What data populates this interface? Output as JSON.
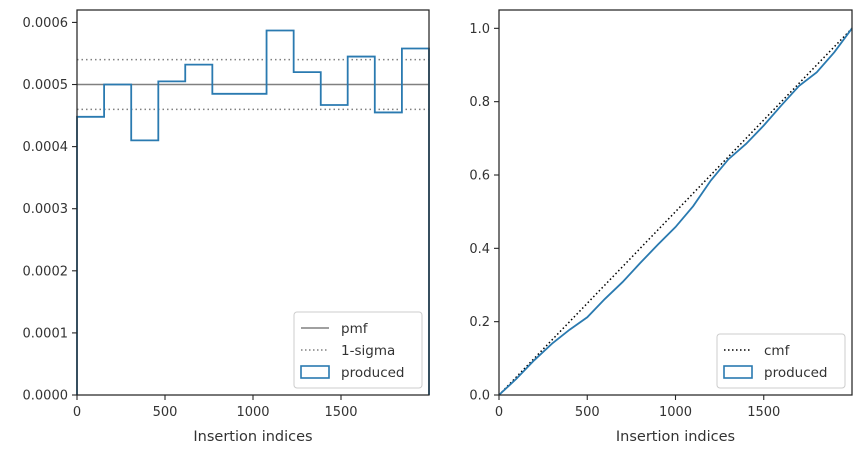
{
  "chart_data": [
    {
      "type": "step",
      "xlabel": "Insertion indices",
      "ylabel": "",
      "xlim": [
        0,
        2000
      ],
      "ylim": [
        0,
        0.00062
      ],
      "xticks": [
        0,
        500,
        1000,
        1500
      ],
      "xtick_labels": [
        "0",
        "500",
        "1000",
        "1500"
      ],
      "yticks": [
        0,
        0.0001,
        0.0002,
        0.0003,
        0.0004,
        0.0005,
        0.0006
      ],
      "ytick_labels": [
        "0.0000",
        "0.0001",
        "0.0002",
        "0.0003",
        "0.0004",
        "0.0005",
        "0.0006"
      ],
      "grid": false,
      "legend_position": "bottom-right",
      "reference_lines": [
        {
          "name": "pmf",
          "y": 0.0005,
          "style": "solid",
          "color": "#808080"
        },
        {
          "name": "1-sigma",
          "y": [
            0.00046,
            0.00054
          ],
          "style": "dotted",
          "color": "#808080"
        }
      ],
      "series": [
        {
          "name": "produced",
          "color": "#2a7ab0",
          "bin_edges": [
            0,
            154,
            308,
            462,
            615,
            769,
            923,
            1077,
            1231,
            1385,
            1538,
            1692,
            1846,
            2000
          ],
          "values": [
            0.000448,
            0.0005,
            0.00041,
            0.000505,
            0.000532,
            0.000485,
            0.000485,
            0.000587,
            0.00052,
            0.000467,
            0.000545,
            0.000455,
            0.000558
          ]
        }
      ],
      "legend": [
        "pmf",
        "1-sigma",
        "produced"
      ]
    },
    {
      "type": "line",
      "xlabel": "Insertion indices",
      "ylabel": "",
      "xlim": [
        0,
        2000
      ],
      "ylim": [
        0,
        1.05
      ],
      "xticks": [
        0,
        500,
        1000,
        1500
      ],
      "xtick_labels": [
        "0",
        "500",
        "1000",
        "1500"
      ],
      "yticks": [
        0,
        0.2,
        0.4,
        0.6,
        0.8,
        1.0
      ],
      "ytick_labels": [
        "0.0",
        "0.2",
        "0.4",
        "0.6",
        "0.8",
        "1.0"
      ],
      "grid": false,
      "legend_position": "bottom-right",
      "series": [
        {
          "name": "cmf",
          "style": "dotted",
          "color": "#000000",
          "x": [
            0,
            2000
          ],
          "y": [
            0,
            1.0
          ]
        },
        {
          "name": "produced",
          "style": "solid",
          "color": "#2a7ab0",
          "x": [
            0,
            100,
            200,
            300,
            400,
            500,
            600,
            700,
            800,
            900,
            1000,
            1100,
            1200,
            1300,
            1400,
            1500,
            1600,
            1700,
            1800,
            1900,
            2000
          ],
          "y": [
            0,
            0.045,
            0.095,
            0.14,
            0.178,
            0.212,
            0.262,
            0.308,
            0.36,
            0.41,
            0.458,
            0.515,
            0.585,
            0.643,
            0.685,
            0.735,
            0.79,
            0.843,
            0.88,
            0.935,
            1.0
          ]
        }
      ],
      "legend": [
        "cmf",
        "produced"
      ]
    }
  ]
}
